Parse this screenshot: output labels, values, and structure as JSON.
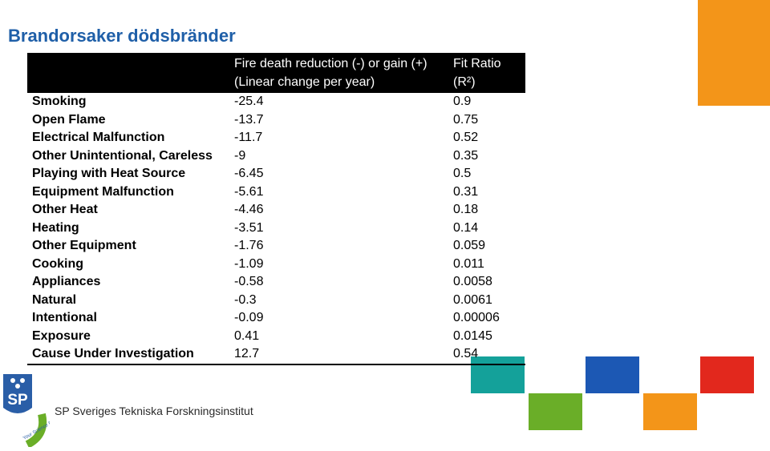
{
  "slide": {
    "title": "Brandorsaker dödsbränder"
  },
  "table": {
    "header": {
      "cause": "",
      "rate_line1": "Fire death reduction (-) or gain (+)",
      "rate_line2": "(Linear change per year)",
      "fit_line1": "Fit Ratio",
      "fit_line2": "(R²)"
    },
    "rows": [
      {
        "cause": "Smoking",
        "rate": "-25.4",
        "fit": "0.9"
      },
      {
        "cause": "Open Flame",
        "rate": "-13.7",
        "fit": "0.75"
      },
      {
        "cause": "Electrical Malfunction",
        "rate": "-11.7",
        "fit": "0.52"
      },
      {
        "cause": "Other Unintentional, Careless",
        "rate": "-9",
        "fit": "0.35"
      },
      {
        "cause": "Playing with Heat Source",
        "rate": "-6.45",
        "fit": "0.5"
      },
      {
        "cause": "Equipment Malfunction",
        "rate": "-5.61",
        "fit": "0.31"
      },
      {
        "cause": "Other Heat",
        "rate": "-4.46",
        "fit": "0.18"
      },
      {
        "cause": "Heating",
        "rate": "-3.51",
        "fit": "0.14"
      },
      {
        "cause": "Other Equipment",
        "rate": "-1.76",
        "fit": "0.059"
      },
      {
        "cause": "Cooking",
        "rate": "-1.09",
        "fit": "0.011"
      },
      {
        "cause": "Appliances",
        "rate": "-0.58",
        "fit": "0.0058"
      },
      {
        "cause": "Natural",
        "rate": "-0.3",
        "fit": "0.0061"
      },
      {
        "cause": "Intentional",
        "rate": "-0.09",
        "fit": "0.00006"
      },
      {
        "cause": "Exposure",
        "rate": "0.41",
        "fit": "0.0145"
      },
      {
        "cause": "Cause Under Investigation",
        "rate": "12.7",
        "fit": "0.54"
      }
    ]
  },
  "footer": {
    "logo_letters": "SP",
    "logo_tagline": "Your Science Partner",
    "org_name": "SP Sveriges Tekniska Forskningsinstitut"
  },
  "colors": {
    "title": "#1f5fa8",
    "orange": "#f39519",
    "teal": "#14a19a",
    "blue": "#1c58b4",
    "green": "#6aae28",
    "red": "#e2281d",
    "logo_blue": "#2a5ea7"
  }
}
